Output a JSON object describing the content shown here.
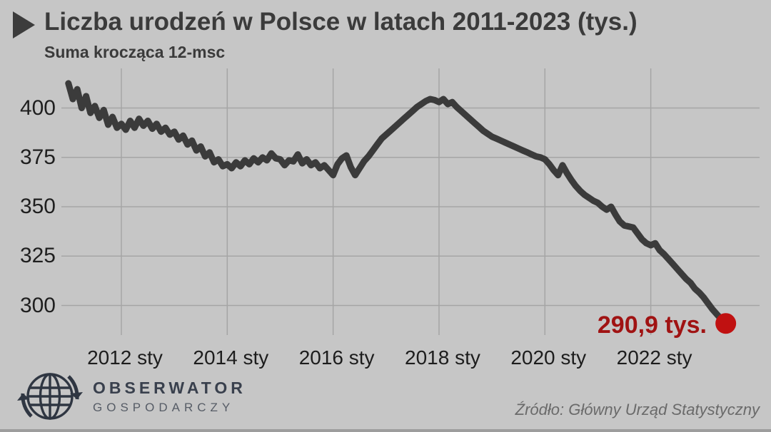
{
  "page": {
    "background": "#c6c6c6"
  },
  "header": {
    "title": "Liczba urodzeń w Polsce w latach 2011-2023 (tys.)",
    "subtitle": "Suma krocząca 12-msc",
    "marker_icon": "play-triangle"
  },
  "chart_data": {
    "type": "line",
    "title": "Liczba urodzeń w Polsce w latach 2011-2023 (tys.)",
    "subtitle": "Suma krocząca 12-msc",
    "unit": "tys.",
    "frequency": "monthly",
    "start_month": "2011-01",
    "end_month": "2023-06",
    "values": [
      412.5,
      404.5,
      409.5,
      400.0,
      406.0,
      397.5,
      401.0,
      395.0,
      399.0,
      391.5,
      395.5,
      390.0,
      392.0,
      389.0,
      393.5,
      390.0,
      394.5,
      391.0,
      393.5,
      389.5,
      392.0,
      388.0,
      390.0,
      386.5,
      388.0,
      384.0,
      386.0,
      381.5,
      383.5,
      378.5,
      380.5,
      375.5,
      377.5,
      372.5,
      374.0,
      370.5,
      371.5,
      369.5,
      372.5,
      370.5,
      373.5,
      371.5,
      374.5,
      372.5,
      375.0,
      373.5,
      377.0,
      374.5,
      374.0,
      371.0,
      373.5,
      373.0,
      376.5,
      372.0,
      374.0,
      371.0,
      372.5,
      369.5,
      371.0,
      368.5,
      366.0,
      371.5,
      374.5,
      376.0,
      370.0,
      366.0,
      369.5,
      373.0,
      375.5,
      378.5,
      381.5,
      384.5,
      386.5,
      388.5,
      390.5,
      392.5,
      394.5,
      396.5,
      398.5,
      400.5,
      402.0,
      403.5,
      404.5,
      404.0,
      403.0,
      404.5,
      402.0,
      403.0,
      400.5,
      398.5,
      396.5,
      394.5,
      392.5,
      390.5,
      388.5,
      387.0,
      385.5,
      384.5,
      383.5,
      382.5,
      381.5,
      380.5,
      379.5,
      378.5,
      377.5,
      376.5,
      375.5,
      375.0,
      374.0,
      371.5,
      368.5,
      366.0,
      371.0,
      367.0,
      363.5,
      360.5,
      358.0,
      356.0,
      354.5,
      353.0,
      352.0,
      350.0,
      348.5,
      350.0,
      346.0,
      342.5,
      340.5,
      340.0,
      339.5,
      336.5,
      333.5,
      331.5,
      330.5,
      331.5,
      328.0,
      326.0,
      323.5,
      321.0,
      318.5,
      316.0,
      313.5,
      311.5,
      308.5,
      306.5,
      304.0,
      301.0,
      298.0,
      295.5,
      293.0,
      290.9
    ],
    "y_ticks": [
      400,
      375,
      350,
      325,
      300
    ],
    "ylim": [
      286,
      416
    ],
    "x_ticks": [
      {
        "label": "2012 sty",
        "month_index": 12
      },
      {
        "label": "2014 sty",
        "month_index": 36
      },
      {
        "label": "2016 sty",
        "month_index": 60
      },
      {
        "label": "2018 sty",
        "month_index": 84
      },
      {
        "label": "2020 sty",
        "month_index": 108
      },
      {
        "label": "2022 sty",
        "month_index": 132
      }
    ],
    "grid": true,
    "legend": "none",
    "last_point": {
      "label": "290,9 tys.",
      "value": 290.9
    },
    "line_color": "#3b3b3b",
    "marker_color": "#c01111",
    "grid_color": "#a5a5a5"
  },
  "footer": {
    "brand_name": "OBSERWATOR",
    "brand_tagline": "GOSPODARCZY",
    "brand_icon": "globe-arrows",
    "source": "Źródło: Główny Urząd Statystyczny"
  },
  "colors": {
    "background": "#c6c6c6",
    "title_text": "#3b3b3b",
    "tick_text": "#1f1f1f",
    "annotation_red": "#a01313",
    "dot_red": "#c01111",
    "brand_dark": "#39404d",
    "source_gray": "#6a6a6a"
  }
}
